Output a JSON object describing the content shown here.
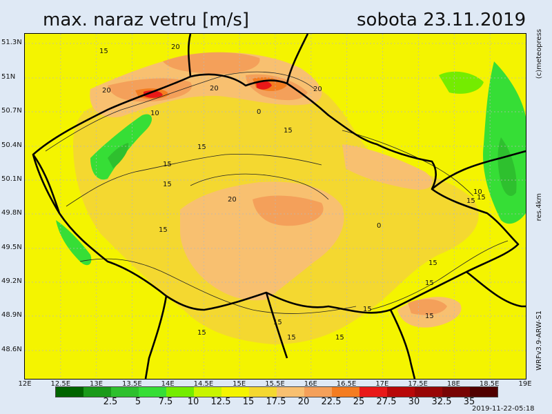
{
  "title": {
    "parameter": "max. naraz vetru [m/s]",
    "date": "sobota 23.11.2019"
  },
  "credit": "(c)meteopress",
  "resolution": "res.4km",
  "model": "WRFv3.9-ARW-S1",
  "timestamp": "2019-11-22-05:18",
  "y_axis": {
    "labels": [
      "51.3N",
      "51N",
      "50.7N",
      "50.4N",
      "50.1N",
      "49.8N",
      "49.5N",
      "49.2N",
      "48.9N",
      "48.6N"
    ]
  },
  "x_axis": {
    "labels": [
      "12E",
      "12.5E",
      "13E",
      "13.5E",
      "14E",
      "14.5E",
      "15E",
      "15.5E",
      "16E",
      "16.5E",
      "17E",
      "17.5E",
      "18E",
      "18.5E",
      "19E"
    ]
  },
  "legend": {
    "colors": [
      "#006400",
      "#1a9a1a",
      "#2ec02e",
      "#36de36",
      "#74ec00",
      "#c8f400",
      "#f4f400",
      "#f4d830",
      "#f8c070",
      "#f4a05a",
      "#f47c20",
      "#e81818",
      "#b80808",
      "#980606",
      "#780404",
      "#500000"
    ],
    "labels": [
      "2.5",
      "5",
      "7.5",
      "10",
      "12.5",
      "15",
      "17.5",
      "20",
      "22.5",
      "25",
      "27.5",
      "30",
      "32.5",
      "35"
    ]
  },
  "contour_labels": [
    "20",
    "15",
    "20",
    "20",
    "20",
    "10",
    "0",
    "15",
    "15",
    "15",
    "15",
    "0",
    "20",
    "15",
    "15",
    "15",
    "10",
    "15",
    "15",
    "15",
    "15",
    "15",
    "15",
    "15",
    "15"
  ]
}
